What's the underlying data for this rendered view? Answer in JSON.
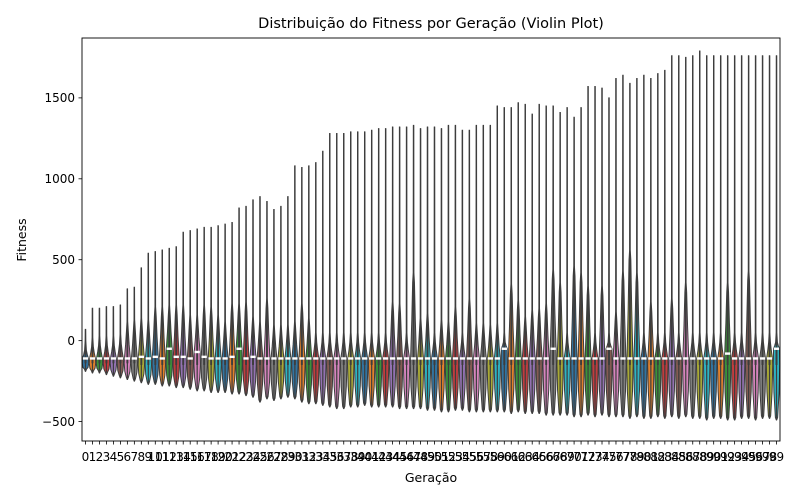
{
  "chart_data": {
    "type": "violin",
    "title": "Distribuição do Fitness por Geração (Violin Plot)",
    "xlabel": "Geração",
    "ylabel": "Fitness",
    "ylim": [
      -620,
      1870
    ],
    "yticks": [
      -500,
      0,
      500,
      1000,
      1500
    ],
    "grid": false,
    "legend": "none",
    "categories": [
      "0",
      "1",
      "2",
      "3",
      "4",
      "5",
      "6",
      "7",
      "8",
      "9",
      "10",
      "11",
      "12",
      "13",
      "14",
      "15",
      "16",
      "17",
      "18",
      "19",
      "20",
      "21",
      "22",
      "23",
      "24",
      "25",
      "26",
      "27",
      "28",
      "29",
      "30",
      "31",
      "32",
      "33",
      "34",
      "35",
      "36",
      "37",
      "38",
      "39",
      "40",
      "41",
      "42",
      "43",
      "44",
      "45",
      "46",
      "47",
      "48",
      "49",
      "50",
      "51",
      "52",
      "53",
      "54",
      "55",
      "56",
      "57",
      "58",
      "59",
      "60",
      "61",
      "62",
      "63",
      "64",
      "65",
      "66",
      "67",
      "68",
      "69",
      "70",
      "71",
      "72",
      "73",
      "74",
      "75",
      "76",
      "77",
      "78",
      "79",
      "80",
      "81",
      "82",
      "83",
      "84",
      "85",
      "86",
      "87",
      "88",
      "89",
      "90",
      "91",
      "92",
      "93",
      "94",
      "95",
      "96",
      "97",
      "98",
      "99"
    ],
    "max": [
      70,
      200,
      200,
      210,
      210,
      220,
      320,
      330,
      450,
      540,
      550,
      560,
      570,
      580,
      670,
      680,
      690,
      700,
      700,
      710,
      720,
      730,
      820,
      830,
      870,
      890,
      860,
      810,
      830,
      890,
      1080,
      1070,
      1080,
      1100,
      1170,
      1280,
      1280,
      1280,
      1290,
      1290,
      1290,
      1300,
      1310,
      1310,
      1320,
      1320,
      1320,
      1330,
      1310,
      1320,
      1320,
      1310,
      1330,
      1330,
      1300,
      1300,
      1330,
      1330,
      1330,
      1450,
      1440,
      1440,
      1470,
      1460,
      1400,
      1460,
      1450,
      1450,
      1410,
      1440,
      1380,
      1440,
      1570,
      1570,
      1560,
      1500,
      1620,
      1640,
      1590,
      1620,
      1640,
      1620,
      1650,
      1670,
      1760,
      1760,
      1750,
      1760,
      1790,
      1760,
      1760,
      1760,
      1760,
      1760,
      1760,
      1760,
      1760,
      1760,
      1760,
      1760
    ],
    "q3": [
      -60,
      -40,
      -30,
      -30,
      -30,
      -20,
      60,
      70,
      80,
      70,
      150,
      150,
      160,
      160,
      160,
      100,
      100,
      160,
      150,
      100,
      60,
      170,
      170,
      180,
      90,
      60,
      200,
      40,
      40,
      40,
      60,
      170,
      80,
      -10,
      -10,
      -10,
      -10,
      -10,
      -10,
      -10,
      -10,
      -10,
      -10,
      -10,
      180,
      170,
      -10,
      360,
      80,
      110,
      -10,
      70,
      60,
      150,
      -10,
      200,
      50,
      50,
      40,
      50,
      -10,
      290,
      190,
      90,
      130,
      140,
      170,
      380,
      300,
      -10,
      400,
      360,
      280,
      -10,
      280,
      -10,
      120,
      370,
      500,
      360,
      -10,
      180,
      -10,
      -10,
      200,
      -10,
      300,
      -10,
      -10,
      -10,
      -10,
      -10,
      300,
      -10,
      -10,
      370,
      -10,
      -10,
      -10,
      -10
    ],
    "median": [
      -110,
      -110,
      -110,
      -110,
      -110,
      -110,
      -110,
      -110,
      -100,
      -110,
      -100,
      -110,
      -50,
      -100,
      -100,
      -110,
      -70,
      -100,
      -110,
      -110,
      -110,
      -100,
      -50,
      -110,
      -100,
      -110,
      -110,
      -110,
      -110,
      -110,
      -110,
      -110,
      -110,
      -110,
      -110,
      -110,
      -110,
      -110,
      -110,
      -110,
      -110,
      -110,
      -110,
      -110,
      -110,
      -110,
      -110,
      -110,
      -110,
      -110,
      -110,
      -110,
      -110,
      -110,
      -110,
      -110,
      -110,
      -110,
      -110,
      -110,
      -50,
      -110,
      -110,
      -110,
      -110,
      -110,
      -110,
      -50,
      -110,
      -110,
      -110,
      -110,
      -110,
      -110,
      -110,
      -50,
      -110,
      -110,
      -110,
      -110,
      -110,
      -110,
      -110,
      -110,
      -110,
      -110,
      -110,
      -110,
      -110,
      -110,
      -110,
      -110,
      -80,
      -110,
      -110,
      -110,
      -110,
      -110,
      -110,
      -50
    ],
    "q1": [
      -140,
      -140,
      -140,
      -140,
      -140,
      -140,
      -140,
      -140,
      -150,
      -150,
      -150,
      -150,
      -150,
      -150,
      -150,
      -150,
      -150,
      -150,
      -150,
      -150,
      -150,
      -150,
      -150,
      -150,
      -150,
      -150,
      -150,
      -150,
      -150,
      -150,
      -150,
      -150,
      -150,
      -150,
      -150,
      -150,
      -150,
      -150,
      -150,
      -150,
      -150,
      -150,
      -150,
      -150,
      -150,
      -150,
      -150,
      -150,
      -150,
      -150,
      -150,
      -150,
      -150,
      -150,
      -150,
      -150,
      -150,
      -150,
      -150,
      -150,
      -150,
      -150,
      -150,
      -150,
      -150,
      -150,
      -150,
      -150,
      -150,
      -150,
      -150,
      -150,
      -150,
      -150,
      -150,
      -150,
      -150,
      -150,
      -150,
      -150,
      -150,
      -150,
      -150,
      -150,
      -150,
      -150,
      -150,
      -150,
      -150,
      -150,
      -150,
      -150,
      -150,
      -150,
      -150,
      -150,
      -150,
      -150,
      -150,
      -150
    ],
    "min": [
      -190,
      -200,
      -200,
      -210,
      -220,
      -230,
      -240,
      -250,
      -260,
      -270,
      -270,
      -280,
      -280,
      -290,
      -290,
      -300,
      -310,
      -310,
      -320,
      -320,
      -320,
      -330,
      -330,
      -340,
      -350,
      -380,
      -360,
      -370,
      -360,
      -350,
      -360,
      -380,
      -390,
      -390,
      -400,
      -410,
      -420,
      -420,
      -410,
      -410,
      -400,
      -410,
      -410,
      -410,
      -410,
      -420,
      -420,
      -420,
      -420,
      -430,
      -430,
      -440,
      -440,
      -430,
      -430,
      -440,
      -440,
      -440,
      -440,
      -440,
      -440,
      -450,
      -440,
      -450,
      -450,
      -450,
      -460,
      -460,
      -460,
      -460,
      -470,
      -470,
      -460,
      -470,
      -460,
      -470,
      -470,
      -470,
      -480,
      -470,
      -480,
      -480,
      -470,
      -480,
      -470,
      -480,
      -470,
      -480,
      -480,
      -490,
      -480,
      -480,
      -490,
      -490,
      -480,
      -480,
      -490,
      -480,
      -480,
      -490
    ],
    "colors": [
      "#3274a1",
      "#e1812c",
      "#3a923a",
      "#c03d3e",
      "#9372b2",
      "#845b53",
      "#d684bd",
      "#7f7f7f",
      "#a9aa35",
      "#2eb3c2"
    ]
  }
}
